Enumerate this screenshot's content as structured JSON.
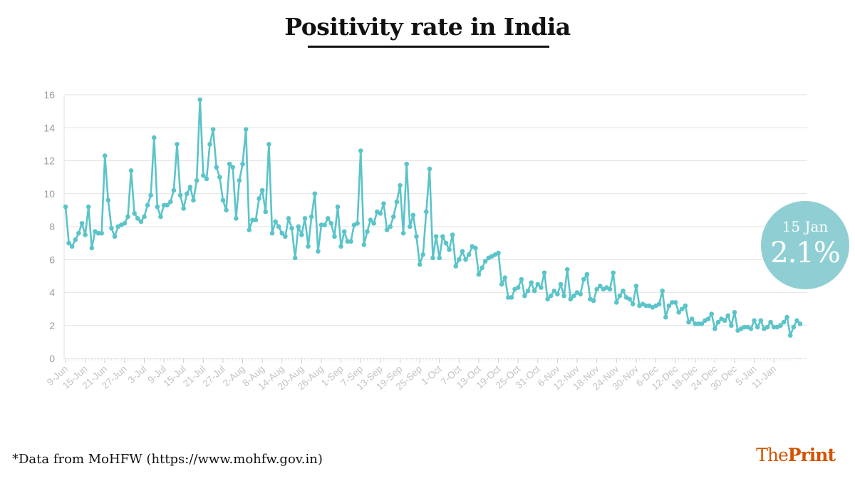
{
  "title": "Positivity rate in India",
  "footnote": "*Data from MoHFW (https://www.mohfw.gov.in)",
  "brand": {
    "part1": "The",
    "part2": "Print"
  },
  "callout": {
    "date": "15 Jan",
    "value": "2.1%"
  },
  "colors": {
    "line": "#5bc4c9",
    "grid": "#e6e6e6",
    "tick": "#c8c8c8",
    "badge": "#8fcfd3",
    "brand": "#d35400"
  },
  "chart_data": {
    "type": "line",
    "title": "Positivity rate in India",
    "xlabel": "",
    "ylabel": "",
    "ylim": [
      0,
      16
    ],
    "yticks": [
      0,
      2,
      4,
      6,
      8,
      10,
      12,
      14,
      16
    ],
    "grid": true,
    "x_tick_labels": [
      "9-Jun",
      "15-Jun",
      "21-Jun",
      "27-Jun",
      "3-Jul",
      "9-Jul",
      "15-Jul",
      "21-Jul",
      "27-Jul",
      "2-Aug",
      "8-Aug",
      "14-Aug",
      "20-Aug",
      "26-Aug",
      "1-Sep",
      "7-Sep",
      "13-Sep",
      "19-Sep",
      "25-Sep",
      "1-Oct",
      "7-Oct",
      "13-Oct",
      "19-Oct",
      "25-Oct",
      "31-Oct",
      "6-Nov",
      "12-Nov",
      "18-Nov",
      "24-Nov",
      "30-Nov",
      "6-Dec",
      "12-Dec",
      "18-Dec",
      "24-Dec",
      "30-Dec",
      "5-Jan",
      "11-Jan"
    ],
    "x_start": "9-Jun",
    "x_end": "15-Jan",
    "series": [
      {
        "values": [
          9.2,
          7.0,
          6.8,
          7.2,
          7.6,
          8.2,
          7.5,
          9.2,
          6.7,
          7.7,
          7.6,
          7.6,
          12.3,
          9.6,
          7.9,
          7.4,
          8.0,
          8.1,
          8.2,
          8.6,
          11.4,
          8.8,
          8.5,
          8.3,
          8.6,
          9.3,
          9.9,
          13.4,
          9.2,
          8.6,
          9.3,
          9.3,
          9.5,
          10.2,
          13.0,
          9.9,
          9.1,
          10.0,
          10.4,
          9.6,
          10.8,
          15.7,
          11.1,
          10.9,
          13.0,
          13.9,
          11.6,
          11.0,
          9.6,
          9.0,
          11.8,
          11.6,
          8.5,
          10.8,
          11.8,
          13.9,
          7.8,
          8.4,
          8.4,
          9.7,
          10.2,
          8.9,
          13.0,
          7.6,
          8.3,
          8.0,
          7.6,
          7.4,
          8.5,
          7.9,
          6.1,
          8.0,
          7.5,
          8.5,
          6.8,
          8.6,
          10.0,
          6.5,
          8.1,
          8.1,
          8.5,
          8.2,
          7.4,
          9.2,
          6.8,
          7.7,
          7.1,
          7.1,
          8.1,
          8.2,
          12.6,
          6.9,
          7.7,
          8.4,
          8.2,
          8.9,
          8.8,
          9.4,
          7.8,
          8.0,
          8.6,
          9.5,
          10.5,
          7.6,
          11.8,
          8.0,
          8.7,
          7.4,
          5.7,
          6.3,
          8.9,
          11.5,
          6.1,
          7.4,
          6.1,
          7.4,
          7.0,
          6.6,
          7.5,
          5.6,
          6.0,
          6.5,
          6.0,
          6.3,
          6.8,
          6.7,
          5.1,
          5.5,
          5.9,
          6.1,
          6.2,
          6.3,
          6.4,
          4.5,
          4.9,
          3.7,
          3.7,
          4.2,
          4.3,
          4.8,
          3.8,
          4.1,
          4.6,
          4.1,
          4.5,
          4.3,
          5.2,
          3.6,
          3.8,
          4.1,
          3.9,
          4.5,
          3.8,
          5.4,
          3.6,
          3.8,
          4.0,
          3.9,
          4.8,
          5.1,
          3.6,
          3.5,
          4.2,
          4.4,
          4.2,
          4.3,
          4.2,
          5.2,
          3.4,
          3.8,
          4.1,
          3.7,
          3.6,
          3.3,
          4.4,
          3.2,
          3.3,
          3.2,
          3.2,
          3.1,
          3.2,
          3.3,
          4.1,
          2.5,
          3.2,
          3.4,
          3.4,
          2.8,
          3.0,
          3.2,
          2.2,
          2.4,
          2.1,
          2.1,
          2.1,
          2.3,
          2.4,
          2.7,
          1.8,
          2.2,
          2.4,
          2.3,
          2.6,
          2.0,
          2.8,
          1.7,
          1.8,
          1.9,
          1.9,
          1.8,
          2.3,
          1.9,
          2.3,
          1.8,
          1.9,
          2.2,
          1.9,
          1.9,
          2.0,
          2.2,
          2.5,
          1.4,
          1.9,
          2.3,
          2.1
        ]
      }
    ]
  }
}
